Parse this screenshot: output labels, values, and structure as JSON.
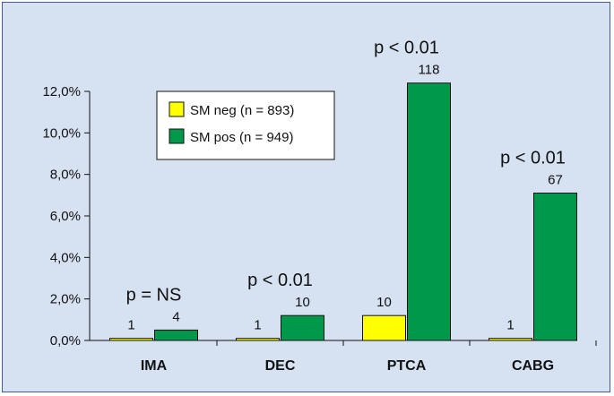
{
  "chart_data": {
    "type": "bar",
    "categories": [
      "IMA",
      "DEC",
      "PTCA",
      "CABG"
    ],
    "series": [
      {
        "name": "SM neg (n = 893)",
        "color": "#ffff00",
        "values": [
          0.1,
          0.1,
          1.2,
          0.1
        ],
        "labels": [
          "1",
          "1",
          "10",
          "1"
        ]
      },
      {
        "name": "SM pos (n = 949)",
        "color": "#00994c",
        "values": [
          0.5,
          1.2,
          12.4,
          7.1
        ],
        "labels": [
          "4",
          "10",
          "118",
          "67"
        ]
      }
    ],
    "pvalues": [
      "p = NS",
      "p < 0.01",
      "p < 0.01",
      "p < 0.01"
    ],
    "yticks": [
      "0,0%",
      "2,0%",
      "4,0%",
      "6,0%",
      "8,0%",
      "10,0%",
      "12,0%"
    ],
    "ylim": [
      0,
      12
    ],
    "ystep": 2,
    "legend_position": "top-left",
    "grid": false
  }
}
